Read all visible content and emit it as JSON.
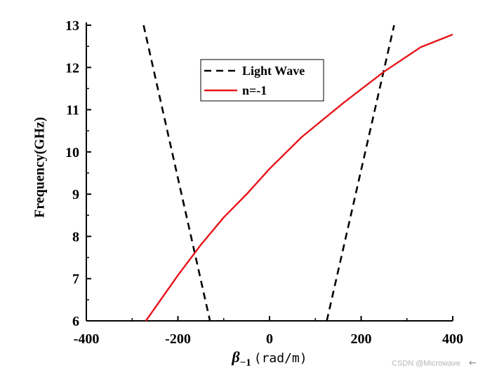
{
  "chart_data": {
    "type": "line",
    "title": "",
    "xlabel": {
      "symbol": "β",
      "subscript": "−1",
      "unit": "(rad/m)"
    },
    "ylabel": "Frequency(GHz)",
    "xlim": [
      -400,
      400
    ],
    "ylim": [
      6,
      13
    ],
    "xticks": [
      -400,
      -200,
      0,
      200,
      400
    ],
    "yticks": [
      6,
      7,
      8,
      9,
      10,
      11,
      12,
      13
    ],
    "grid": false,
    "legend_position": "top-center",
    "series": [
      {
        "name": "Light Wave",
        "style": "dashed",
        "color": "#000000",
        "segments": [
          {
            "x": [
              -275,
              -130
            ],
            "y": [
              13,
              6
            ]
          },
          {
            "x": [
              125,
              272
            ],
            "y": [
              6,
              13
            ]
          }
        ]
      },
      {
        "name": "n=-1",
        "style": "solid",
        "color": "#e8141b",
        "x": [
          -270,
          -200,
          -150,
          -100,
          -50,
          0,
          70,
          160,
          250,
          330,
          400
        ],
        "y": [
          6.0,
          7.08,
          7.8,
          8.45,
          9.0,
          9.6,
          10.35,
          11.15,
          11.9,
          12.48,
          12.78
        ]
      }
    ]
  },
  "watermark": "CSDN @Microwave"
}
